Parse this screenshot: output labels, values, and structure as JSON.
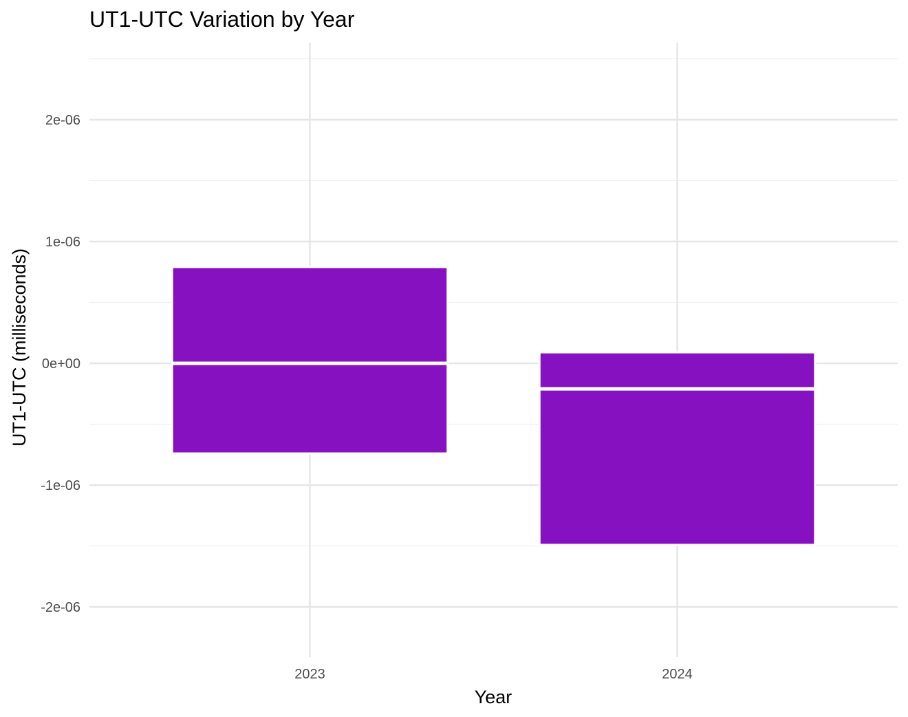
{
  "chart_data": {
    "type": "boxplot",
    "title": "UT1-UTC Variation by Year",
    "xlabel": "Year",
    "ylabel": "UT1-UTC (milliseconds)",
    "categories": [
      "2023",
      "2024"
    ],
    "boxes": [
      {
        "category": "2023",
        "q1": -7.4e-07,
        "median": 0.0,
        "q3": 7.9e-07,
        "whisker_low": -7.4e-07,
        "whisker_high": 7.9e-07
      },
      {
        "category": "2024",
        "q1": -1.49e-06,
        "median": -2.1e-07,
        "q3": 9e-08,
        "whisker_low": -1.49e-06,
        "whisker_high": 9e-08
      }
    ],
    "y_ticks": [
      {
        "value": -2e-06,
        "label": "-2e-06"
      },
      {
        "value": -1e-06,
        "label": "-1e-06"
      },
      {
        "value": 0,
        "label": "0e+00"
      },
      {
        "value": 1e-06,
        "label": "1e-06"
      },
      {
        "value": 2e-06,
        "label": "2e-06"
      }
    ],
    "ylim": [
      -2.4e-06,
      2.5e-06
    ],
    "grid": true,
    "legend": "none",
    "colors": {
      "box_fill": "#8511c1",
      "box_outline": "#ffffff",
      "grid_major": "#e6e6e6",
      "grid_minor": "#f0f0f0"
    }
  }
}
